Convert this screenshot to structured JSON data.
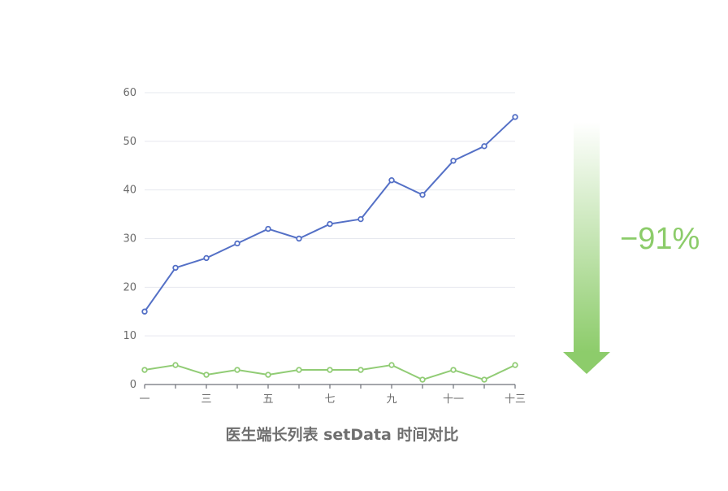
{
  "chart_data": {
    "type": "line",
    "title": "医生端长列表 setData 时间对比",
    "xlabel": "",
    "ylabel": "",
    "x_tick_labels": [
      "一",
      "",
      "三",
      "",
      "五",
      "",
      "七",
      "",
      "九",
      "",
      "十一",
      "",
      "十三"
    ],
    "ylim": [
      0,
      60
    ],
    "y_ticks": [
      0,
      10,
      20,
      30,
      40,
      50,
      60
    ],
    "grid": true,
    "legend": "none",
    "series": [
      {
        "color": "#5470c6",
        "values": [
          15,
          24,
          26,
          29,
          32,
          30,
          33,
          34,
          42,
          39,
          46,
          49,
          55
        ]
      },
      {
        "color": "#91cc75",
        "values": [
          3,
          4,
          2,
          3,
          2,
          3,
          3,
          3,
          4,
          1,
          3,
          1,
          4
        ]
      }
    ]
  },
  "annotation": {
    "text": "−91%",
    "color": "#8ccc6a",
    "icon": "down-arrow-icon"
  }
}
